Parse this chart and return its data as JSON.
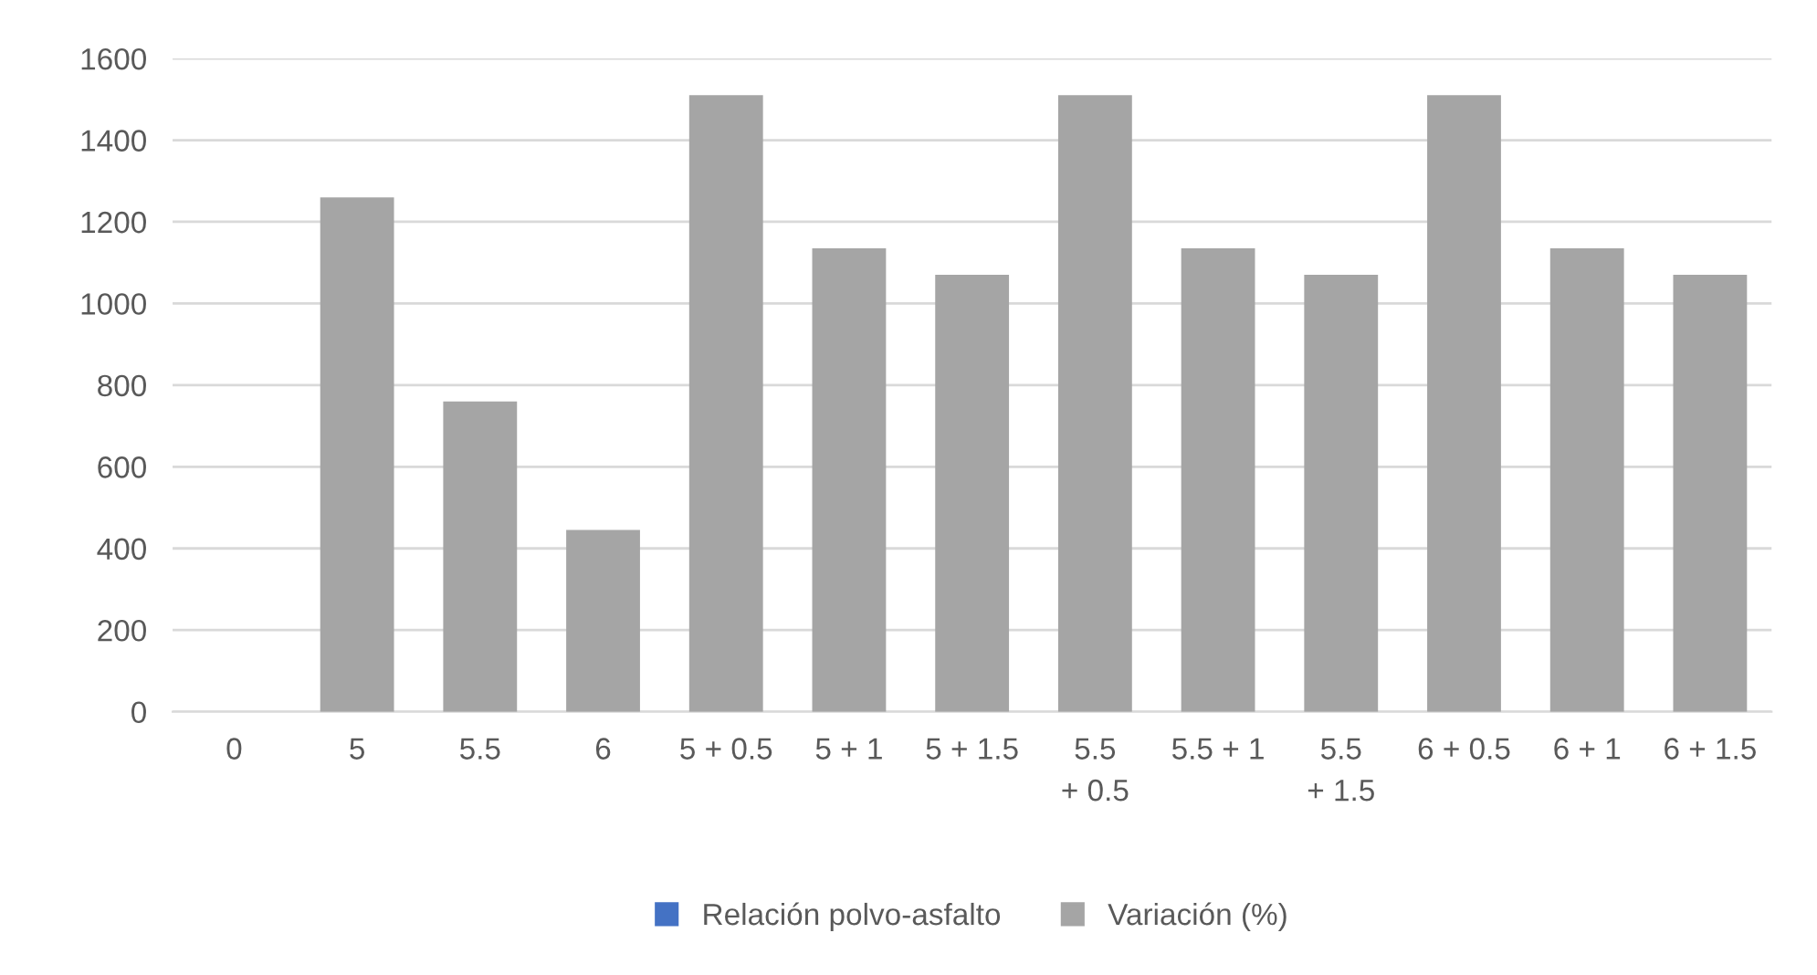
{
  "chart_data": {
    "type": "bar",
    "categories": [
      "0",
      "5",
      "5.5",
      "6",
      "5 + 0.5",
      "5 + 1",
      "5 + 1.5",
      "5.5 + 0.5",
      "5.5 + 1",
      "5.5 + 1.5",
      "6 + 0.5",
      "6 + 1",
      "6 + 1.5"
    ],
    "series": [
      {
        "name": "Relación polvo-asfalto",
        "color": "#4472c4",
        "values": [
          null,
          null,
          null,
          null,
          null,
          null,
          null,
          null,
          null,
          null,
          null,
          null,
          null
        ]
      },
      {
        "name": "Variación (%)",
        "color": "#a5a5a5",
        "values": [
          null,
          1260,
          760,
          445,
          1510,
          1135,
          1070,
          1510,
          1135,
          1070,
          1510,
          1135,
          1070
        ]
      }
    ],
    "ylim": [
      0,
      1600
    ],
    "yticks": [
      0,
      200,
      400,
      600,
      800,
      1000,
      1200,
      1400,
      1600
    ],
    "grid": "y",
    "legend": "bottom"
  }
}
